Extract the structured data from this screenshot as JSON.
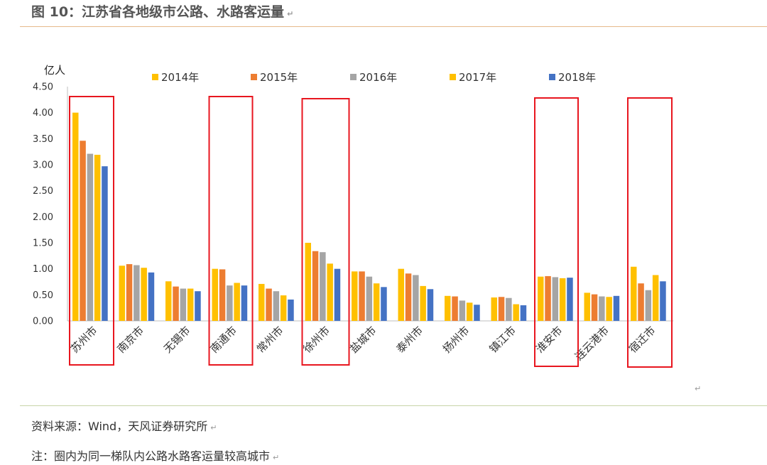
{
  "header": {
    "title": "图 10：江苏省各地级市公路、水路客运量"
  },
  "footer": {
    "source": "资料来源：Wind，天风证券研究所",
    "note": "注：圈内为同一梯队内公路水路客运量较高城市"
  },
  "colors": {
    "2014年": "#FFC000",
    "2015年": "#ED7D31",
    "2016年": "#A5A5A5",
    "2017年": "#FFC000",
    "2018年": "#4472C4",
    "highlight": "#E8161F"
  },
  "chart_data": {
    "type": "bar",
    "title": "",
    "ylabel": "亿人",
    "xlabel": "",
    "ylim": [
      0,
      4.5
    ],
    "yticks": [
      "0.00",
      "0.50",
      "1.00",
      "1.50",
      "2.00",
      "2.50",
      "3.00",
      "3.50",
      "4.00",
      "4.50"
    ],
    "legend_position": "top",
    "categories": [
      "苏州市",
      "南京市",
      "无锡市",
      "南通市",
      "常州市",
      "徐州市",
      "盐城市",
      "泰州市",
      "扬州市",
      "镇江市",
      "淮安市",
      "连云港市",
      "宿迁市"
    ],
    "series": [
      {
        "name": "2014年",
        "values": [
          4.0,
          1.06,
          0.76,
          1.0,
          0.71,
          1.5,
          0.95,
          1.0,
          0.48,
          0.45,
          0.85,
          0.54,
          1.04
        ]
      },
      {
        "name": "2015年",
        "values": [
          3.46,
          1.09,
          0.66,
          0.99,
          0.62,
          1.34,
          0.95,
          0.91,
          0.47,
          0.46,
          0.86,
          0.51,
          0.72
        ]
      },
      {
        "name": "2016年",
        "values": [
          3.21,
          1.07,
          0.62,
          0.68,
          0.57,
          1.32,
          0.85,
          0.88,
          0.39,
          0.44,
          0.84,
          0.47,
          0.59
        ]
      },
      {
        "name": "2017年",
        "values": [
          3.19,
          1.02,
          0.62,
          0.73,
          0.49,
          1.1,
          0.72,
          0.67,
          0.35,
          0.32,
          0.82,
          0.46,
          0.88
        ]
      },
      {
        "name": "2018年",
        "values": [
          2.97,
          0.93,
          0.57,
          0.68,
          0.41,
          1.0,
          0.65,
          0.61,
          0.31,
          0.3,
          0.83,
          0.48,
          0.76
        ]
      }
    ],
    "highlighted_categories": [
      "苏州市",
      "南通市",
      "徐州市",
      "淮安市",
      "宿迁市"
    ]
  }
}
